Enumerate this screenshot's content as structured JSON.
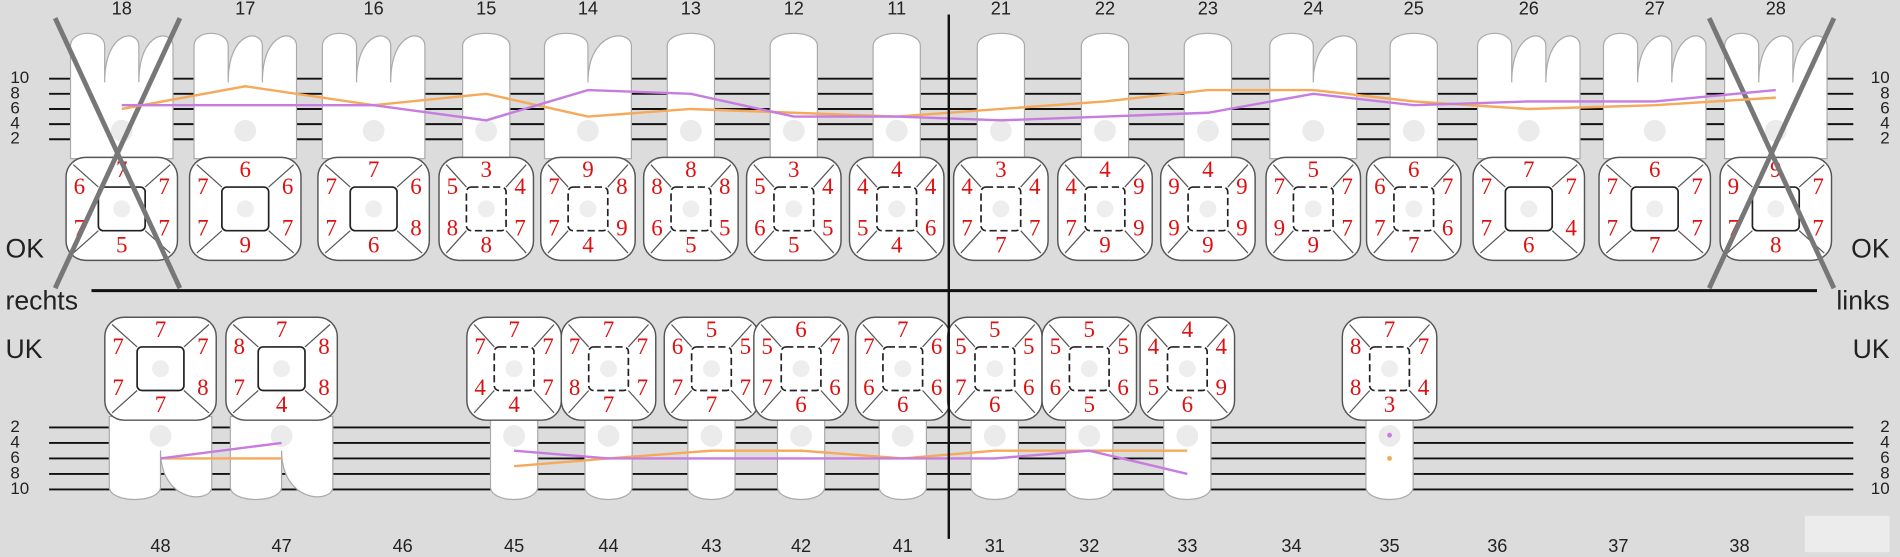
{
  "side_labels": {
    "left": [
      "OK",
      "rechts",
      "UK"
    ],
    "right": [
      "OK",
      "links",
      "UK"
    ]
  },
  "upper_scale": [
    10,
    8,
    6,
    4,
    2
  ],
  "lower_scale": [
    2,
    4,
    6,
    8,
    10
  ],
  "upper_teeth": [
    {
      "number": 18,
      "values": [
        7,
        6,
        7,
        7,
        7,
        5
      ],
      "crossed": true
    },
    {
      "number": 17,
      "values": [
        6,
        7,
        6,
        7,
        7,
        9
      ]
    },
    {
      "number": 16,
      "values": [
        7,
        7,
        6,
        7,
        8,
        6
      ]
    },
    {
      "number": 15,
      "values": [
        3,
        5,
        4,
        8,
        7,
        8
      ]
    },
    {
      "number": 14,
      "values": [
        9,
        7,
        8,
        7,
        9,
        4
      ]
    },
    {
      "number": 13,
      "values": [
        8,
        8,
        8,
        6,
        5,
        5
      ]
    },
    {
      "number": 12,
      "values": [
        3,
        5,
        4,
        6,
        5,
        5
      ]
    },
    {
      "number": 11,
      "values": [
        4,
        4,
        4,
        5,
        6,
        4
      ]
    },
    {
      "number": 21,
      "values": [
        3,
        4,
        4,
        7,
        7,
        7
      ]
    },
    {
      "number": 22,
      "values": [
        4,
        4,
        9,
        7,
        9,
        9
      ]
    },
    {
      "number": 23,
      "values": [
        4,
        9,
        9,
        9,
        9,
        9
      ]
    },
    {
      "number": 24,
      "values": [
        5,
        7,
        7,
        9,
        7,
        9
      ]
    },
    {
      "number": 25,
      "values": [
        6,
        6,
        7,
        7,
        6,
        7
      ]
    },
    {
      "number": 26,
      "values": [
        7,
        7,
        7,
        7,
        4,
        6
      ]
    },
    {
      "number": 27,
      "values": [
        6,
        7,
        7,
        7,
        7,
        7
      ]
    },
    {
      "number": 28,
      "values": [
        9,
        9,
        7,
        7,
        7,
        8
      ],
      "crossed": true
    }
  ],
  "lower_teeth": [
    {
      "number": 48,
      "values": [
        7,
        7,
        7,
        7,
        8,
        7
      ]
    },
    {
      "number": 47,
      "values": [
        7,
        8,
        8,
        7,
        8,
        4
      ]
    },
    {
      "number": 46,
      "missing": true
    },
    {
      "number": 45,
      "values": [
        7,
        7,
        7,
        4,
        7,
        4
      ]
    },
    {
      "number": 44,
      "values": [
        7,
        7,
        7,
        8,
        7,
        7
      ]
    },
    {
      "number": 43,
      "values": [
        5,
        6,
        5,
        7,
        7,
        7
      ]
    },
    {
      "number": 42,
      "values": [
        6,
        5,
        7,
        7,
        6,
        6
      ]
    },
    {
      "number": 41,
      "values": [
        7,
        7,
        6,
        6,
        6,
        6
      ]
    },
    {
      "number": 31,
      "values": [
        5,
        5,
        5,
        7,
        6,
        6
      ]
    },
    {
      "number": 32,
      "values": [
        5,
        5,
        5,
        6,
        6,
        5
      ]
    },
    {
      "number": 33,
      "values": [
        4,
        4,
        4,
        5,
        9,
        6
      ]
    },
    {
      "number": 34,
      "missing": true
    },
    {
      "number": 35,
      "values": [
        7,
        8,
        7,
        8,
        4,
        3
      ]
    },
    {
      "number": 36,
      "missing": true
    },
    {
      "number": 37,
      "missing": true
    },
    {
      "number": 38,
      "missing": true
    }
  ],
  "upper_lines": [
    {
      "color": "#f5a95a",
      "values": [
        6,
        9,
        6.5,
        8,
        5,
        6,
        5.5,
        5,
        6,
        7,
        8.5,
        8.5,
        7,
        6,
        6.5,
        7.5
      ]
    },
    {
      "color": "#c77de0",
      "values": [
        6.5,
        6.5,
        6.5,
        4.5,
        8.5,
        8,
        5,
        5,
        4.5,
        5,
        5.5,
        8,
        6.5,
        7,
        7,
        8.5
      ]
    }
  ],
  "lower_lines": [
    {
      "color": "#f5a95a",
      "values": [
        6,
        6,
        null,
        7,
        6,
        5,
        5,
        6,
        5,
        5,
        5,
        null,
        6,
        null,
        null,
        null
      ]
    },
    {
      "color": "#c77de0",
      "values": [
        6,
        4,
        null,
        5,
        6,
        6,
        6,
        6,
        6,
        5,
        8,
        null,
        3,
        null,
        null,
        null
      ]
    }
  ]
}
